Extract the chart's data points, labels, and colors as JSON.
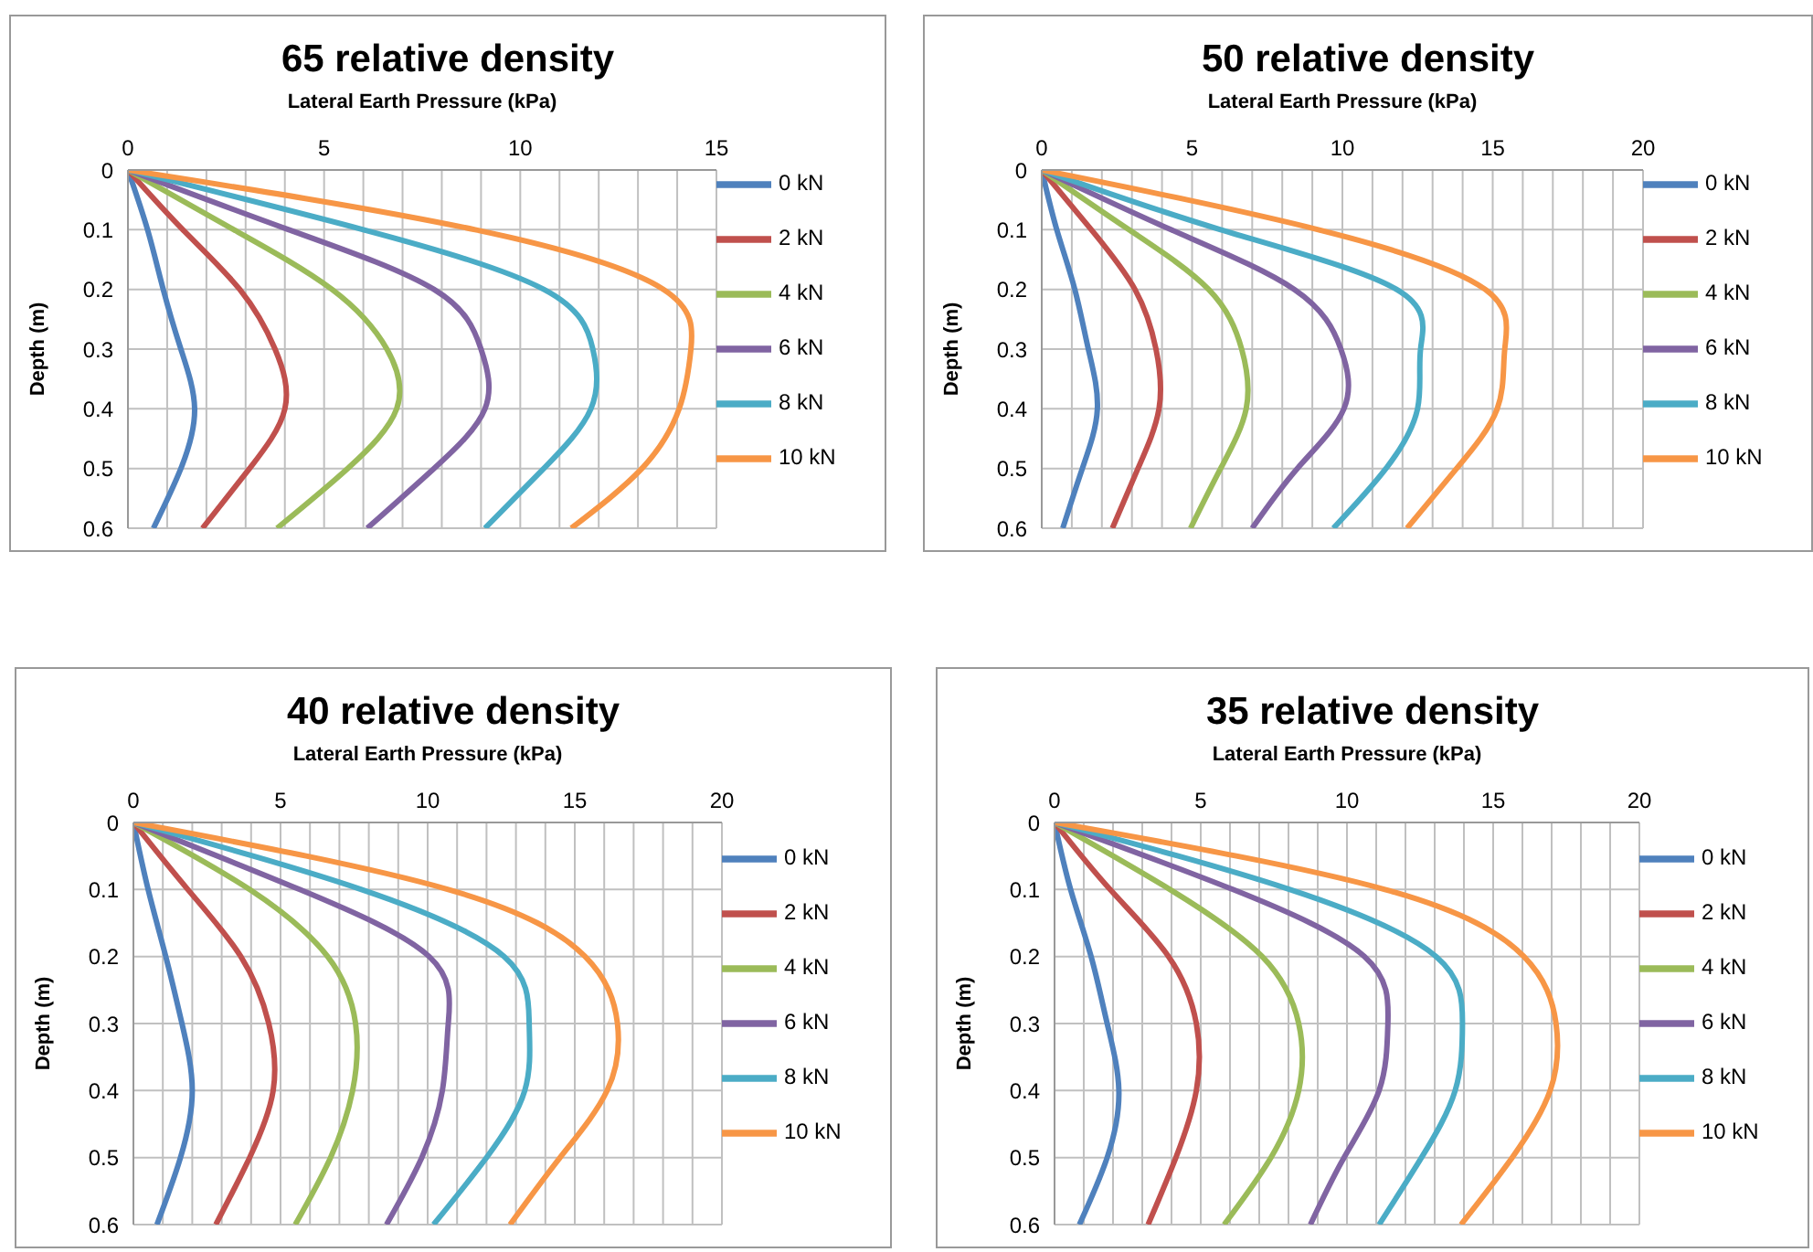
{
  "chart_data": [
    {
      "type": "line",
      "title": "65 relative density",
      "xlabel": "Lateral Earth Pressure (kPa)",
      "ylabel": "Depth (m)",
      "xlim": [
        0,
        15
      ],
      "xticks": [
        0,
        {
          "value": 1,
          "label": null
        },
        {
          "value": 2,
          "label": null
        },
        {
          "value": 3,
          "label": null
        },
        {
          "value": 4,
          "label": null
        },
        5,
        {
          "value": 6,
          "label": null
        },
        {
          "value": 7,
          "label": null
        },
        {
          "value": 8,
          "label": null
        },
        {
          "value": 9,
          "label": null
        },
        10,
        {
          "value": 11,
          "label": null
        },
        {
          "value": 12,
          "label": null
        },
        {
          "value": 13,
          "label": null
        },
        {
          "value": 14,
          "label": null
        },
        15
      ],
      "ylim": [
        0.6,
        0
      ],
      "yticks": [
        0,
        0.1,
        0.2,
        0.3,
        0.4,
        0.5,
        0.6
      ],
      "grid": true,
      "legend": "right",
      "series": [
        {
          "name": "0 kN",
          "color": "#4f81bd",
          "x": [
            0,
            0.5,
            0.9,
            1.35,
            1.7,
            1.35,
            0.65
          ],
          "values": [
            0,
            0.1,
            0.2,
            0.3,
            0.4,
            0.5,
            0.6
          ]
        },
        {
          "name": "2 kN",
          "color": "#c0504d",
          "x": [
            0,
            1.4,
            2.85,
            3.75,
            4.0,
            3.1,
            1.9
          ],
          "values": [
            0,
            0.1,
            0.2,
            0.3,
            0.4,
            0.5,
            0.6
          ]
        },
        {
          "name": "4 kN",
          "color": "#9bbb59",
          "x": [
            0,
            2.7,
            5.2,
            6.6,
            6.85,
            5.6,
            3.8
          ],
          "values": [
            0,
            0.1,
            0.2,
            0.3,
            0.4,
            0.5,
            0.6
          ]
        },
        {
          "name": "6 kN",
          "color": "#8064a2",
          "x": [
            0,
            4.1,
            7.8,
            9.0,
            9.1,
            7.8,
            6.1
          ],
          "values": [
            0,
            0.1,
            0.2,
            0.3,
            0.4,
            0.5,
            0.6
          ]
        },
        {
          "name": "8 kN",
          "color": "#4bacc6",
          "x": [
            0,
            6.0,
            10.6,
            11.85,
            11.8,
            10.6,
            9.1
          ],
          "values": [
            0,
            0.1,
            0.2,
            0.3,
            0.4,
            0.5,
            0.6
          ]
        },
        {
          "name": "10 kN",
          "color": "#f79646",
          "x": [
            0,
            8.85,
            13.65,
            14.35,
            14.05,
            13.1,
            11.3
          ],
          "values": [
            0,
            0.1,
            0.2,
            0.3,
            0.4,
            0.5,
            0.6
          ]
        }
      ]
    },
    {
      "type": "line",
      "title": "50 relative density",
      "xlabel": "Lateral Earth Pressure (kPa)",
      "ylabel": "Depth (m)",
      "xlim": [
        0,
        20
      ],
      "xticks": [
        0,
        {
          "value": 1,
          "label": null
        },
        {
          "value": 2,
          "label": null
        },
        {
          "value": 3,
          "label": null
        },
        {
          "value": 4,
          "label": null
        },
        5,
        {
          "value": 6,
          "label": null
        },
        {
          "value": 7,
          "label": null
        },
        {
          "value": 8,
          "label": null
        },
        {
          "value": 9,
          "label": null
        },
        10,
        {
          "value": 11,
          "label": null
        },
        {
          "value": 12,
          "label": null
        },
        {
          "value": 13,
          "label": null
        },
        {
          "value": 14,
          "label": null
        },
        15,
        {
          "value": 16,
          "label": null
        },
        {
          "value": 17,
          "label": null
        },
        {
          "value": 18,
          "label": null
        },
        {
          "value": 19,
          "label": null
        },
        20
      ],
      "ylim": [
        0.6,
        0
      ],
      "yticks": [
        0,
        0.1,
        0.2,
        0.3,
        0.4,
        0.5,
        0.6
      ],
      "grid": true,
      "legend": "right",
      "series": [
        {
          "name": "0 kN",
          "color": "#4f81bd",
          "x": [
            0,
            0.5,
            1.1,
            1.55,
            1.85,
            1.35,
            0.7
          ],
          "values": [
            0,
            0.1,
            0.2,
            0.3,
            0.4,
            0.5,
            0.6
          ]
        },
        {
          "name": "2 kN",
          "color": "#c0504d",
          "x": [
            0,
            1.65,
            3.1,
            3.8,
            3.9,
            3.2,
            2.35
          ],
          "values": [
            0,
            0.1,
            0.2,
            0.3,
            0.4,
            0.5,
            0.6
          ]
        },
        {
          "name": "4 kN",
          "color": "#9bbb59",
          "x": [
            0,
            2.9,
            5.55,
            6.65,
            6.8,
            5.95,
            4.95
          ],
          "values": [
            0,
            0.1,
            0.2,
            0.3,
            0.4,
            0.5,
            0.6
          ]
        },
        {
          "name": "6 kN",
          "color": "#8064a2",
          "x": [
            0,
            4.3,
            8.4,
            9.95,
            10.05,
            8.5,
            7.0
          ],
          "values": [
            0,
            0.1,
            0.2,
            0.3,
            0.4,
            0.5,
            0.6
          ]
        },
        {
          "name": "8 kN",
          "color": "#4bacc6",
          "x": [
            0,
            5.95,
            11.8,
            12.6,
            12.5,
            11.45,
            9.7
          ],
          "values": [
            0,
            0.1,
            0.2,
            0.3,
            0.4,
            0.5,
            0.6
          ]
        },
        {
          "name": "10 kN",
          "color": "#f79646",
          "x": [
            0,
            9.2,
            14.75,
            15.4,
            15.15,
            13.8,
            12.15
          ],
          "values": [
            0,
            0.1,
            0.2,
            0.3,
            0.4,
            0.5,
            0.6
          ]
        }
      ]
    },
    {
      "type": "line",
      "title": "40 relative density",
      "xlabel": "Lateral Earth Pressure (kPa)",
      "ylabel": "Depth (m)",
      "xlim": [
        0,
        20
      ],
      "xticks": [
        0,
        {
          "value": 1,
          "label": null
        },
        {
          "value": 2,
          "label": null
        },
        {
          "value": 3,
          "label": null
        },
        {
          "value": 4,
          "label": null
        },
        5,
        {
          "value": 6,
          "label": null
        },
        {
          "value": 7,
          "label": null
        },
        {
          "value": 8,
          "label": null
        },
        {
          "value": 9,
          "label": null
        },
        10,
        {
          "value": 11,
          "label": null
        },
        {
          "value": 12,
          "label": null
        },
        {
          "value": 13,
          "label": null
        },
        {
          "value": 14,
          "label": null
        },
        15,
        {
          "value": 16,
          "label": null
        },
        {
          "value": 17,
          "label": null
        },
        {
          "value": 18,
          "label": null
        },
        {
          "value": 19,
          "label": null
        },
        20
      ],
      "ylim": [
        0.6,
        0
      ],
      "yticks": [
        0,
        0.1,
        0.2,
        0.3,
        0.4,
        0.5,
        0.6
      ],
      "grid": true,
      "legend": "right",
      "series": [
        {
          "name": "0 kN",
          "color": "#4f81bd",
          "x": [
            0,
            0.5,
            1.1,
            1.65,
            2.0,
            1.6,
            0.8
          ],
          "values": [
            0,
            0.1,
            0.2,
            0.3,
            0.4,
            0.5,
            0.6
          ]
        },
        {
          "name": "2 kN",
          "color": "#c0504d",
          "x": [
            0,
            1.85,
            3.65,
            4.6,
            4.75,
            3.95,
            2.8
          ],
          "values": [
            0,
            0.1,
            0.2,
            0.3,
            0.4,
            0.5,
            0.6
          ]
        },
        {
          "name": "4 kN",
          "color": "#9bbb59",
          "x": [
            0,
            3.95,
            6.6,
            7.55,
            7.45,
            6.7,
            5.5
          ],
          "values": [
            0,
            0.1,
            0.2,
            0.3,
            0.4,
            0.5,
            0.6
          ]
        },
        {
          "name": "6 kN",
          "color": "#8064a2",
          "x": [
            0,
            5.65,
            10.05,
            10.7,
            10.5,
            9.8,
            8.6
          ],
          "values": [
            0,
            0.1,
            0.2,
            0.3,
            0.4,
            0.5,
            0.6
          ]
        },
        {
          "name": "8 kN",
          "color": "#4bacc6",
          "x": [
            0,
            7.75,
            12.6,
            13.45,
            13.3,
            12.0,
            10.2
          ],
          "values": [
            0,
            0.1,
            0.2,
            0.3,
            0.4,
            0.5,
            0.6
          ]
        },
        {
          "name": "10 kN",
          "color": "#f79646",
          "x": [
            0,
            10.7,
            15.35,
            16.45,
            16.1,
            14.5,
            12.8
          ],
          "values": [
            0,
            0.1,
            0.2,
            0.3,
            0.4,
            0.5,
            0.6
          ]
        }
      ]
    },
    {
      "type": "line",
      "title": "35 relative density",
      "xlabel": "Lateral Earth Pressure (kPa)",
      "ylabel": "Depth (m)",
      "xlim": [
        0,
        20
      ],
      "xticks": [
        0,
        {
          "value": 1,
          "label": null
        },
        {
          "value": 2,
          "label": null
        },
        {
          "value": 3,
          "label": null
        },
        {
          "value": 4,
          "label": null
        },
        5,
        {
          "value": 6,
          "label": null
        },
        {
          "value": 7,
          "label": null
        },
        {
          "value": 8,
          "label": null
        },
        {
          "value": 9,
          "label": null
        },
        10,
        {
          "value": 11,
          "label": null
        },
        {
          "value": 12,
          "label": null
        },
        {
          "value": 13,
          "label": null
        },
        {
          "value": 14,
          "label": null
        },
        15,
        {
          "value": 16,
          "label": null
        },
        {
          "value": 17,
          "label": null
        },
        {
          "value": 18,
          "label": null
        },
        {
          "value": 19,
          "label": null
        },
        20
      ],
      "ylim": [
        0.6,
        0
      ],
      "yticks": [
        0,
        0.1,
        0.2,
        0.3,
        0.4,
        0.5,
        0.6
      ],
      "grid": true,
      "legend": "right",
      "series": [
        {
          "name": "0 kN",
          "color": "#4f81bd",
          "x": [
            0,
            0.55,
            1.25,
            1.8,
            2.2,
            1.8,
            0.85
          ],
          "values": [
            0,
            0.1,
            0.2,
            0.3,
            0.4,
            0.5,
            0.6
          ]
        },
        {
          "name": "2 kN",
          "color": "#c0504d",
          "x": [
            0,
            1.9,
            3.9,
            4.85,
            4.85,
            4.15,
            3.2
          ],
          "values": [
            0,
            0.1,
            0.2,
            0.3,
            0.4,
            0.5,
            0.6
          ]
        },
        {
          "name": "4 kN",
          "color": "#9bbb59",
          "x": [
            0,
            3.95,
            7.1,
            8.35,
            8.35,
            7.4,
            5.8
          ],
          "values": [
            0,
            0.1,
            0.2,
            0.3,
            0.4,
            0.5,
            0.6
          ]
        },
        {
          "name": "6 kN",
          "color": "#8064a2",
          "x": [
            0,
            6.1,
            10.6,
            11.4,
            11.1,
            9.9,
            8.75
          ],
          "values": [
            0,
            0.1,
            0.2,
            0.3,
            0.4,
            0.5,
            0.6
          ]
        },
        {
          "name": "8 kN",
          "color": "#4bacc6",
          "x": [
            0,
            8.05,
            13.05,
            13.95,
            13.7,
            12.55,
            11.1
          ],
          "values": [
            0,
            0.1,
            0.2,
            0.3,
            0.4,
            0.5,
            0.6
          ]
        },
        {
          "name": "10 kN",
          "color": "#f79646",
          "x": [
            0,
            11.3,
            16.05,
            17.15,
            16.95,
            15.65,
            13.9
          ],
          "values": [
            0,
            0.1,
            0.2,
            0.3,
            0.4,
            0.5,
            0.6
          ]
        }
      ]
    }
  ]
}
